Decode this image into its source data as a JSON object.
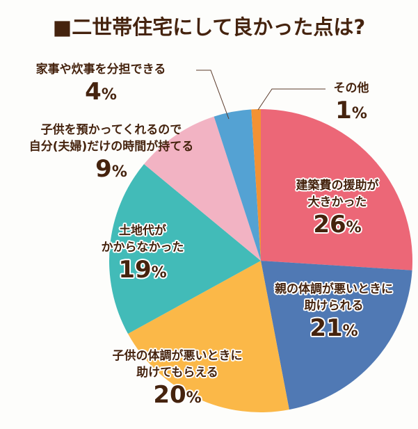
{
  "title": "■二世帯住宅にして良かった点は?",
  "chart_data": {
    "type": "pie",
    "title": "■二世帯住宅にして良かった点は?",
    "start_angle": "12 o'clock, clockwise",
    "categories": [
      "建築費の援助が大きかった",
      "親の体調が悪いときに助けられる",
      "子供の体調が悪いときに助けてもらえる",
      "土地代がかからなかった",
      "子供を預かってくれるので自分(夫婦)だけの時間が持てる",
      "家事や炊事を分担できる",
      "その他"
    ],
    "values": [
      26,
      21,
      20,
      19,
      9,
      4,
      1
    ],
    "unit": "%",
    "colors": [
      "#ec6777",
      "#5079b4",
      "#fbb848",
      "#42bbb8",
      "#f2b3c3",
      "#54a2d3",
      "#f39234"
    ]
  },
  "labels": [
    {
      "line1": "建築費の援助が",
      "line2": "大きかった",
      "pct": "26",
      "unit": "%"
    },
    {
      "line1": "親の体調が悪いときに",
      "line2": "助けられる",
      "pct": "21",
      "unit": "%"
    },
    {
      "line1": "子供の体調が悪いときに",
      "line2": "助けてもらえる",
      "pct": "20",
      "unit": "%"
    },
    {
      "line1": "土地代が",
      "line2": "かからなかった",
      "pct": "19",
      "unit": "%"
    },
    {
      "line1": "子供を預かってくれるので",
      "line2": "自分(夫婦)だけの時間が持てる",
      "pct": "9",
      "unit": "%"
    },
    {
      "line1": "家事や炊事を分担できる",
      "pct": "4",
      "unit": "%"
    },
    {
      "line1": "その他",
      "pct": "1",
      "unit": "%"
    }
  ]
}
